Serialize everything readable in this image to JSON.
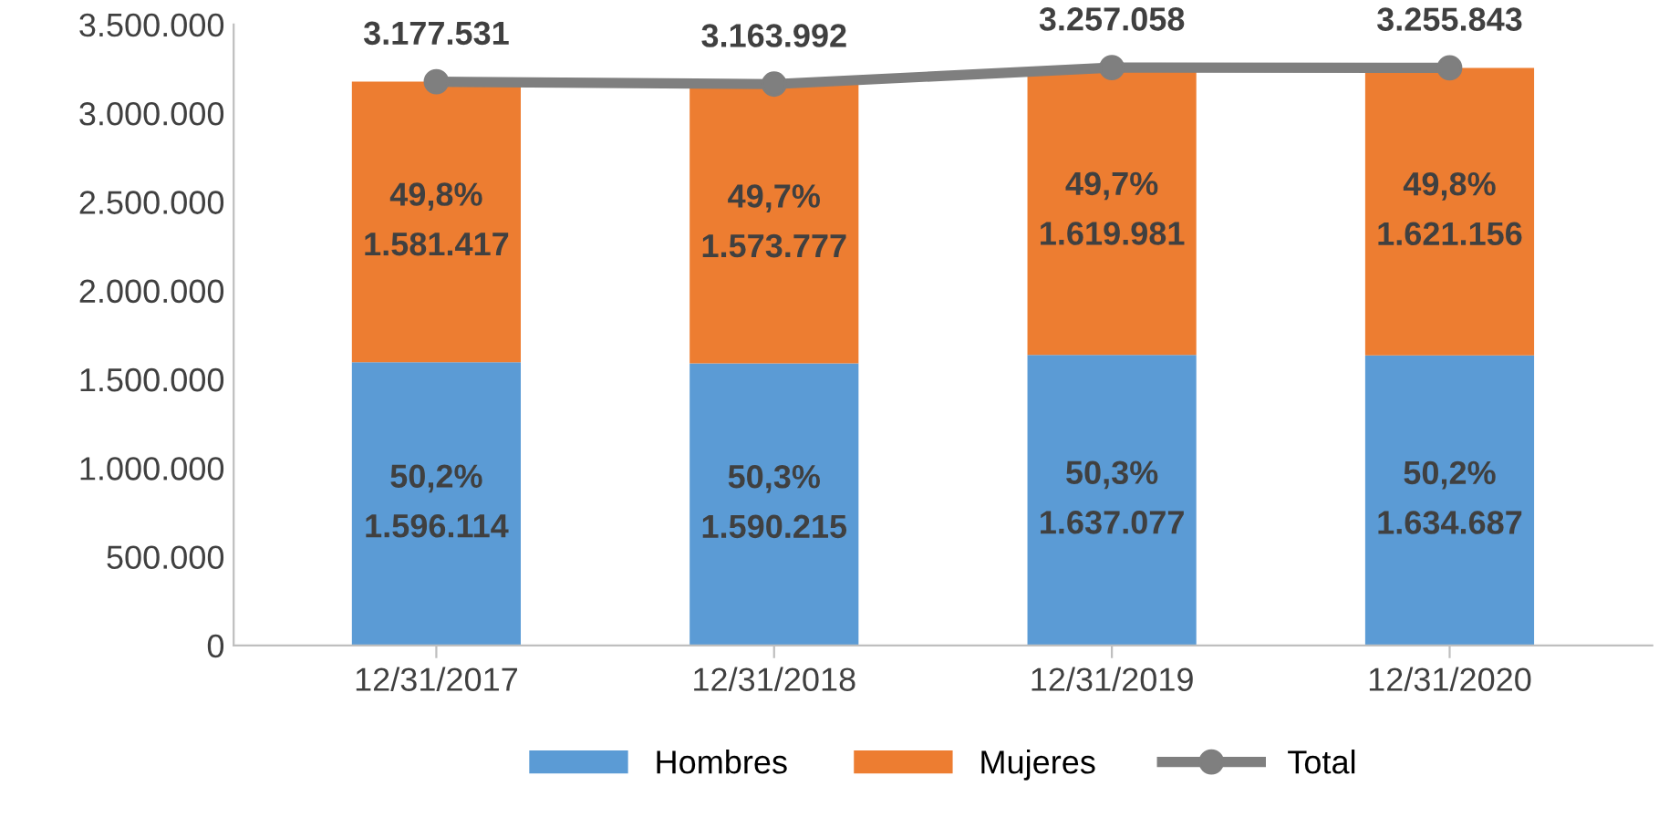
{
  "chart_data": {
    "type": "bar",
    "stacked": true,
    "categories": [
      "12/31/2017",
      "12/31/2018",
      "12/31/2019",
      "12/31/2020"
    ],
    "series": [
      {
        "name": "Hombres",
        "color": "#5b9bd5",
        "values": [
          1596114,
          1590215,
          1637077,
          1634687
        ],
        "value_labels": [
          "50,2%\n1.596.114",
          "50,3%\n1.590.215",
          "50,3%\n1.637.077",
          "50,2%\n1.634.687"
        ]
      },
      {
        "name": "Mujeres",
        "color": "#ed7d31",
        "values": [
          1581417,
          1573777,
          1619981,
          1621156
        ],
        "value_labels": [
          "49,8%\n1.581.417",
          "49,7%\n1.573.777",
          "49,7%\n1.619.981",
          "49,8%\n1.621.156"
        ]
      },
      {
        "name": "Total",
        "type": "line",
        "color": "#7f7f7f",
        "marker": "circle",
        "values": [
          3177531,
          3163992,
          3257058,
          3255843
        ],
        "value_labels": [
          "3.177.531",
          "3.163.992",
          "3.257.058",
          "3.255.843"
        ]
      }
    ],
    "ylim": [
      0,
      3500000
    ],
    "yticks": [
      {
        "value": 0,
        "label": "0"
      },
      {
        "value": 500000,
        "label": "500.000"
      },
      {
        "value": 1000000,
        "label": "1.000.000"
      },
      {
        "value": 1500000,
        "label": "1.500.000"
      },
      {
        "value": 2000000,
        "label": "2.000.000"
      },
      {
        "value": 2500000,
        "label": "2.500.000"
      },
      {
        "value": 3000000,
        "label": "3.000.000"
      },
      {
        "value": 3500000,
        "label": "3.500.000"
      }
    ],
    "grid": false,
    "legend": "bottom"
  }
}
